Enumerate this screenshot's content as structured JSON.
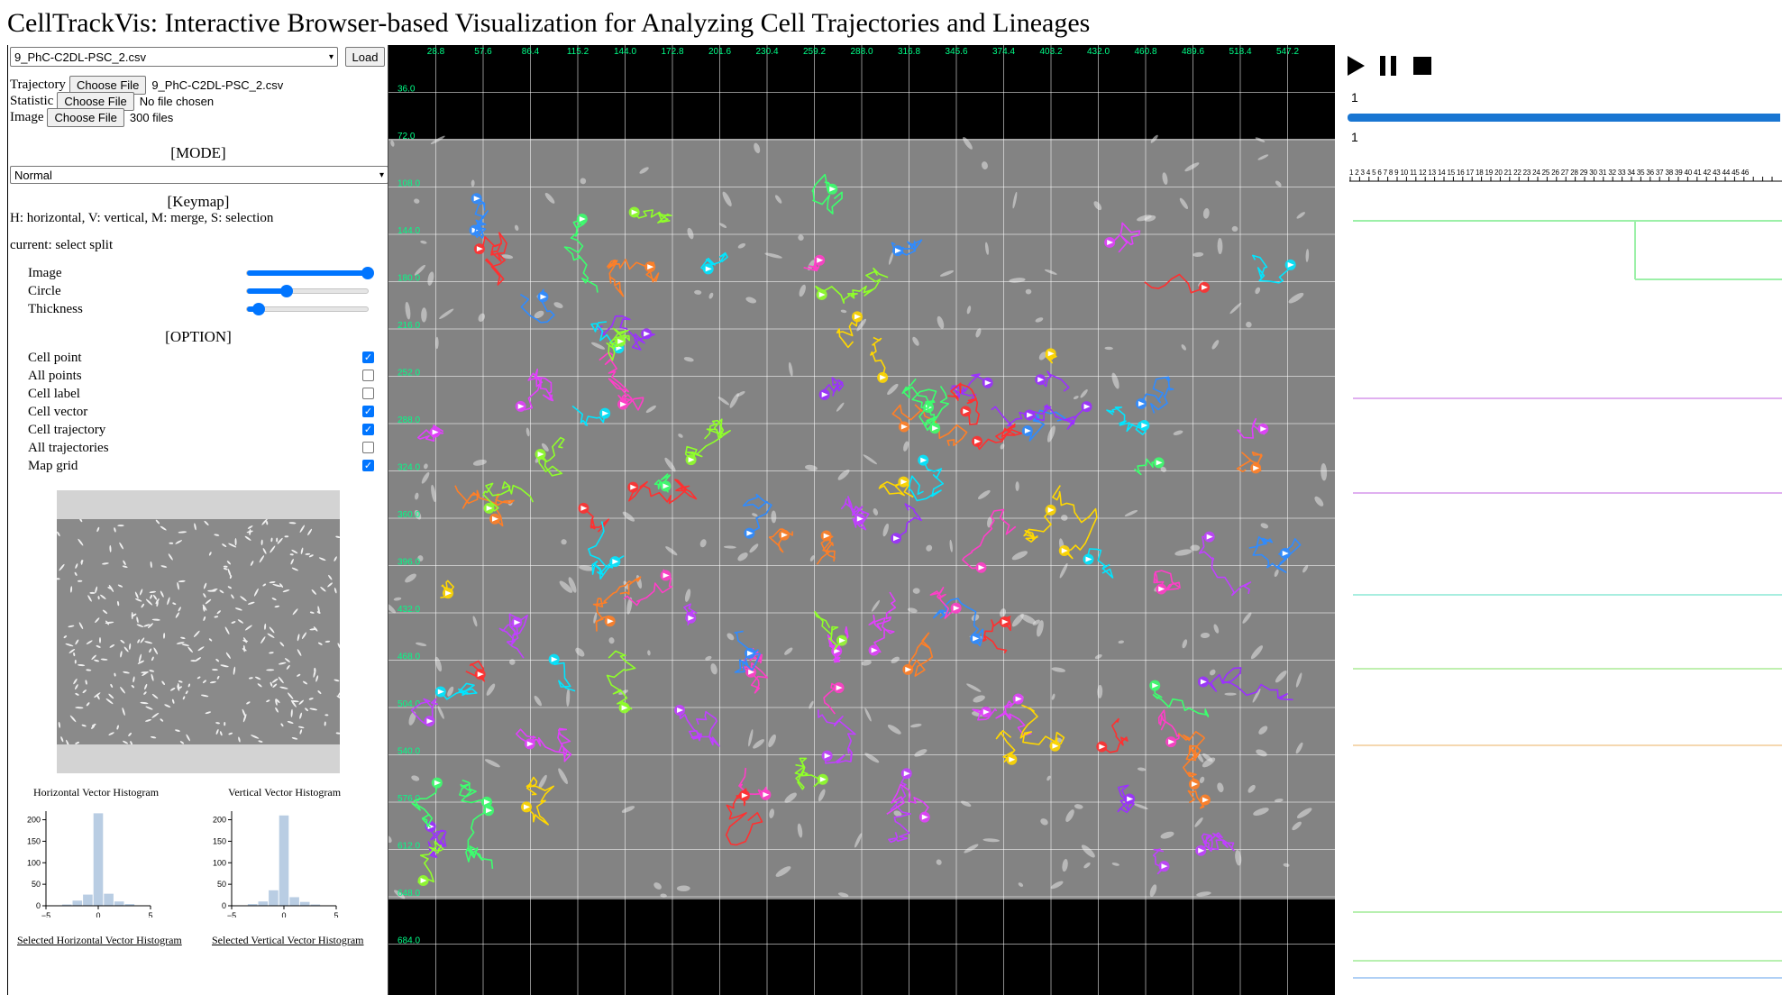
{
  "app": {
    "title": "CellTrackVis: Interactive Browser-based Visualization for Analyzing Cell Trajectories and Lineages"
  },
  "loader": {
    "dataset_selected": "9_PhC-C2DL-PSC_2.csv",
    "load_label": "Load",
    "files": [
      {
        "label": "Trajectory",
        "button": "Choose File",
        "status": "9_PhC-C2DL-PSC_2.csv"
      },
      {
        "label": "Statistic",
        "button": "Choose File",
        "status": "No file chosen"
      },
      {
        "label": "Image",
        "button": "Choose File",
        "status": "300 files"
      }
    ]
  },
  "mode": {
    "heading": "[MODE]",
    "selected": "Normal"
  },
  "keymap": {
    "heading": "[Keymap]",
    "text": "H: horizontal, V: vertical, M: merge, S: selection",
    "current": "current: select split"
  },
  "sliders": [
    {
      "label": "Image",
      "value": 1.0
    },
    {
      "label": "Circle",
      "value": 0.33
    },
    {
      "label": "Thickness",
      "value": 0.1
    }
  ],
  "options": {
    "heading": "[OPTION]",
    "items": [
      {
        "label": "Cell point",
        "checked": true
      },
      {
        "label": "All points",
        "checked": false
      },
      {
        "label": "Cell label",
        "checked": false
      },
      {
        "label": "Cell vector",
        "checked": true
      },
      {
        "label": "Cell trajectory",
        "checked": true
      },
      {
        "label": "All trajectories",
        "checked": false
      },
      {
        "label": "Map grid",
        "checked": true
      }
    ]
  },
  "histograms": {
    "horizontal_title": "Horizontal Vector Histogram",
    "vertical_title": "Vertical Vector Histogram",
    "horizontal_link": "Selected Horizontal Vector Histogram",
    "vertical_link": "Selected Vertical Vector Histogram"
  },
  "map": {
    "x_ticks": [
      "28.8",
      "57.6",
      "86.4",
      "115.2",
      "144.0",
      "172.8",
      "201.6",
      "230.4",
      "259.2",
      "288.0",
      "316.8",
      "345.6",
      "374.4",
      "403.2",
      "432.0",
      "460.8",
      "489.6",
      "518.4",
      "547.2"
    ],
    "y_ticks": [
      "36.0",
      "72.0",
      "108.0",
      "144.0",
      "180.0",
      "216.0",
      "252.0",
      "288.0",
      "324.0",
      "360.0",
      "396.0",
      "432.0",
      "468.0",
      "504.0",
      "540.0",
      "576.0",
      "612.0",
      "648.0",
      "684.0"
    ],
    "grid_color": "#ffffff",
    "axis_color": "#00ff88"
  },
  "player": {
    "frame_top": "1",
    "frame_bottom": "1",
    "progress": 1.0,
    "tick_labels": "1 2 3 4 5 6 7 8 9 10 11 12 13 14 15 16 17 18 19 20 21 22 23 24 25 26 27 28 29 30 31 32 33 34 35 36 37 38 39 40 41 42 43 44 45 46",
    "accent": "#1976d2"
  },
  "chart_data": [
    {
      "type": "bar",
      "title": "Horizontal Vector Histogram",
      "xlim": [
        -5,
        5
      ],
      "ylim": [
        0,
        220
      ],
      "y_ticks": [
        0,
        50,
        100,
        150,
        200
      ],
      "x_ticks": [
        -5,
        0,
        5
      ],
      "bins": [
        -3,
        -2,
        -1,
        0,
        1,
        2,
        3
      ],
      "values": [
        3,
        12,
        26,
        215,
        28,
        10,
        4
      ]
    },
    {
      "type": "bar",
      "title": "Vertical Vector Histogram",
      "xlim": [
        -5,
        5
      ],
      "ylim": [
        0,
        220
      ],
      "y_ticks": [
        0,
        50,
        100,
        150,
        200
      ],
      "x_ticks": [
        -5,
        0,
        5
      ],
      "bins": [
        -3,
        -2,
        -1,
        0,
        1,
        2,
        3
      ],
      "values": [
        4,
        10,
        36,
        210,
        20,
        9,
        3
      ]
    }
  ]
}
